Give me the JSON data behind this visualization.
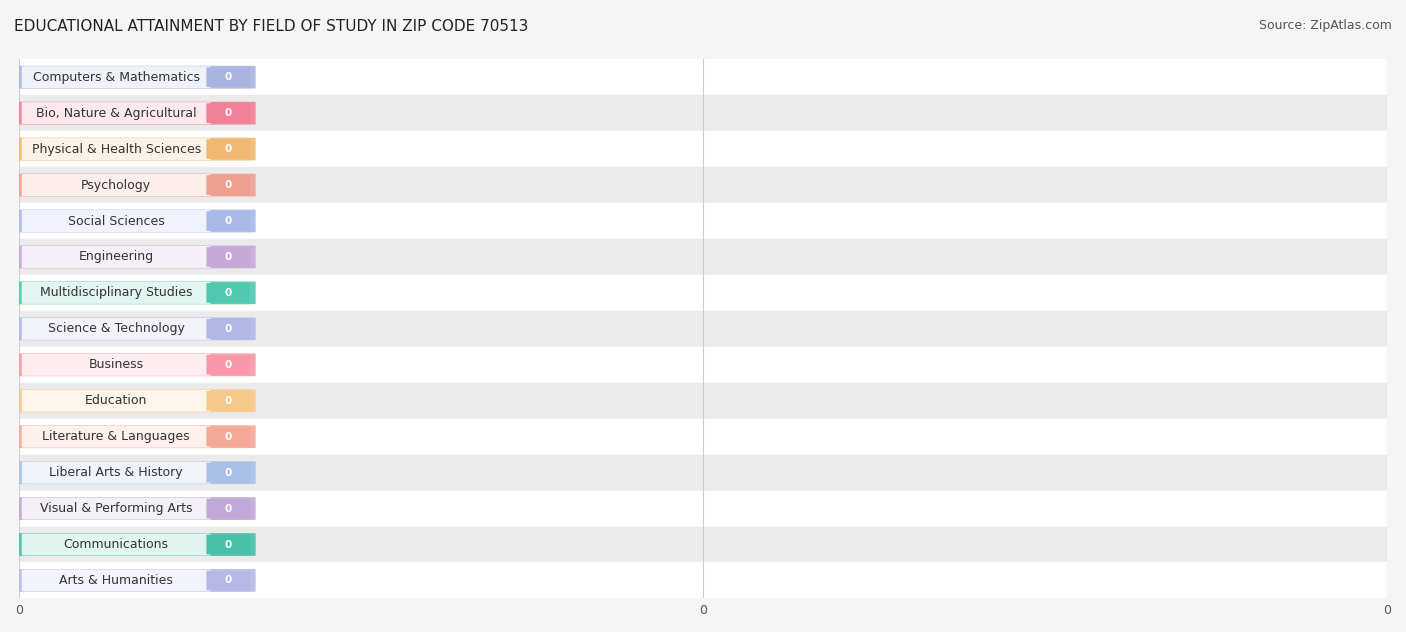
{
  "title": "EDUCATIONAL ATTAINMENT BY FIELD OF STUDY IN ZIP CODE 70513",
  "source": "Source: ZipAtlas.com",
  "categories": [
    "Computers & Mathematics",
    "Bio, Nature & Agricultural",
    "Physical & Health Sciences",
    "Psychology",
    "Social Sciences",
    "Engineering",
    "Multidisciplinary Studies",
    "Science & Technology",
    "Business",
    "Education",
    "Literature & Languages",
    "Liberal Arts & History",
    "Visual & Performing Arts",
    "Communications",
    "Arts & Humanities"
  ],
  "values": [
    0,
    0,
    0,
    0,
    0,
    0,
    0,
    0,
    0,
    0,
    0,
    0,
    0,
    0,
    0
  ],
  "bar_colors": [
    "#aab4e0",
    "#f08098",
    "#f0b870",
    "#f0a090",
    "#a8b8e8",
    "#c8a8d8",
    "#50c8b0",
    "#b0b8e8",
    "#f898a8",
    "#f8c888",
    "#f4a898",
    "#a8c0e8",
    "#c0a8d8",
    "#48c0a8",
    "#b8b8e8"
  ],
  "row_colors": [
    "#ffffff",
    "#ebebeb"
  ],
  "grid_color": "#cccccc",
  "background_color": "#f5f5f5",
  "title_fontsize": 11,
  "label_fontsize": 9,
  "source_fontsize": 9
}
